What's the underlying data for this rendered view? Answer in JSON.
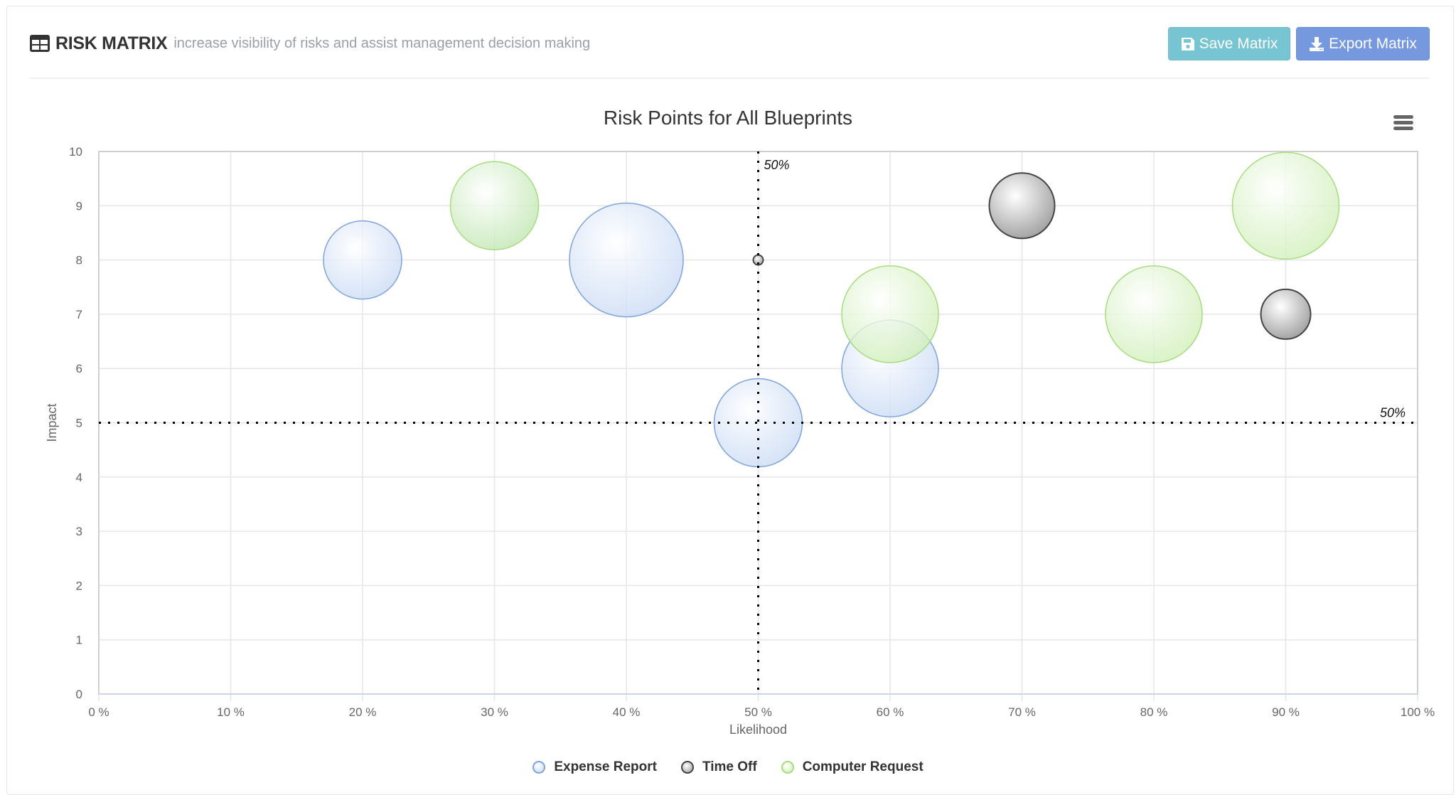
{
  "header": {
    "title": "RISK MATRIX",
    "subtitle": "increase visibility of risks and assist management decision making",
    "icon": "table-icon"
  },
  "toolbar": {
    "save_label": "Save Matrix",
    "save_icon": "floppy-disk-icon",
    "export_label": "Export Matrix",
    "export_icon": "download-icon"
  },
  "colors": {
    "save_button": "#77c4d3",
    "export_button": "#7598de",
    "expense_report": "#7fa3dc",
    "time_off": "#444444",
    "computer_request": "#a6dc7e"
  },
  "chart_data": {
    "type": "bubble",
    "title": "Risk Points for All Blueprints",
    "xlabel": "Likelihood",
    "ylabel": "Impact",
    "xlim": [
      0,
      100
    ],
    "ylim": [
      0,
      10
    ],
    "x_ticks": [
      "0 %",
      "10 %",
      "20 %",
      "30 %",
      "40 %",
      "50 %",
      "60 %",
      "70 %",
      "80 %",
      "90 %",
      "100 %"
    ],
    "y_ticks": [
      "0",
      "1",
      "2",
      "3",
      "4",
      "5",
      "6",
      "7",
      "8",
      "9",
      "10"
    ],
    "grid": true,
    "legend_position": "bottom",
    "plot_lines": [
      {
        "axis": "x",
        "value": 50,
        "label": "50%",
        "style": "dotted"
      },
      {
        "axis": "y",
        "value": 5,
        "label": "50%",
        "style": "dotted"
      }
    ],
    "series": [
      {
        "name": "Expense Report",
        "color": "#7fa3dc",
        "points": [
          {
            "x": 20,
            "y": 8,
            "size": 55
          },
          {
            "x": 40,
            "y": 8,
            "size": 80
          },
          {
            "x": 50,
            "y": 5,
            "size": 62
          },
          {
            "x": 60,
            "y": 6,
            "size": 68
          }
        ]
      },
      {
        "name": "Time Off",
        "color": "#444444",
        "points": [
          {
            "x": 50,
            "y": 8,
            "size": 7
          },
          {
            "x": 70,
            "y": 9,
            "size": 46
          },
          {
            "x": 90,
            "y": 7,
            "size": 35
          }
        ]
      },
      {
        "name": "Computer Request",
        "color": "#a6dc7e",
        "points": [
          {
            "x": 30,
            "y": 9,
            "size": 62
          },
          {
            "x": 60,
            "y": 7,
            "size": 68
          },
          {
            "x": 80,
            "y": 7,
            "size": 68
          },
          {
            "x": 90,
            "y": 9,
            "size": 75
          }
        ]
      }
    ]
  },
  "chart_menu": {
    "icon": "hamburger-menu-icon"
  }
}
